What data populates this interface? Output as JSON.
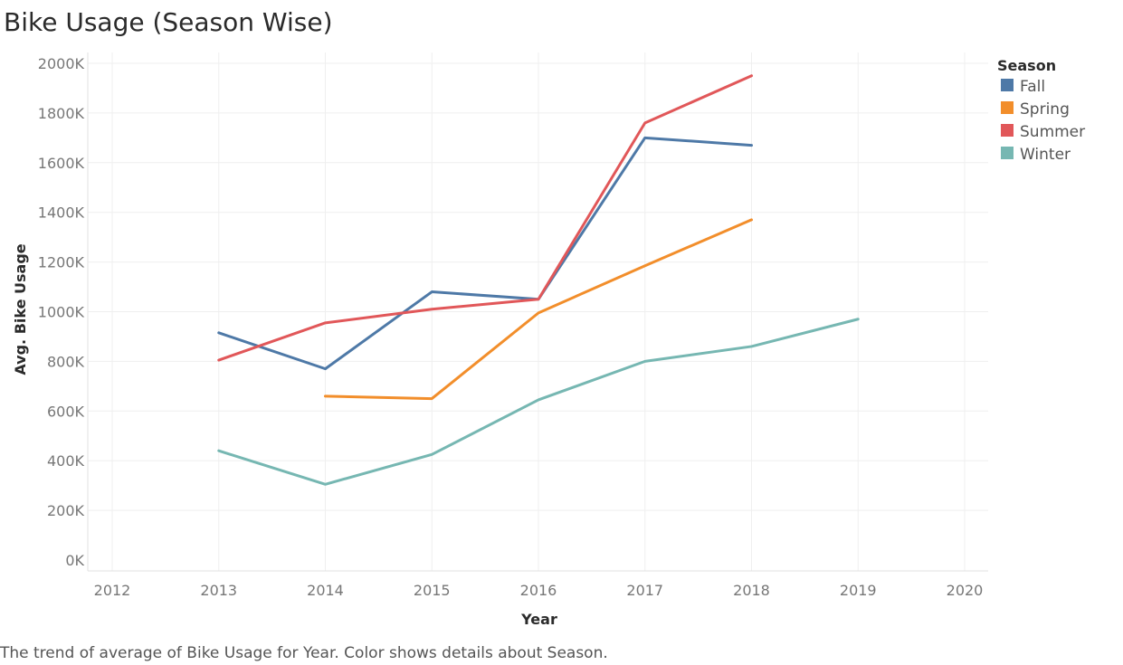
{
  "chart_data": {
    "type": "line",
    "title": "Bike Usage (Season Wise)",
    "caption": "The trend of average of Bike Usage for Year.  Color shows details about Season.",
    "xlabel": "Year",
    "ylabel": "Avg. Bike Usage",
    "x_ticks": [
      "2012",
      "2013",
      "2014",
      "2015",
      "2016",
      "2017",
      "2018",
      "2019",
      "2020"
    ],
    "xlim": [
      2012,
      2020
    ],
    "y_ticks": [
      "2000K",
      "1800K",
      "1600K",
      "1400K",
      "1200K",
      "1000K",
      "800K",
      "600K",
      "400K",
      "200K",
      "0K"
    ],
    "ylim": [
      0,
      2000
    ],
    "grid": true,
    "legend": {
      "title": "Season",
      "position": "top-right"
    },
    "series": [
      {
        "name": "Fall",
        "color": "#4e79a7",
        "x": [
          2013,
          2014,
          2015,
          2016,
          2017,
          2018
        ],
        "y": [
          915,
          770,
          1080,
          1050,
          1700,
          1670
        ]
      },
      {
        "name": "Spring",
        "color": "#f28e2b",
        "x": [
          2014,
          2015,
          2016,
          2017,
          2018
        ],
        "y": [
          660,
          650,
          995,
          1185,
          1370
        ]
      },
      {
        "name": "Summer",
        "color": "#e15759",
        "x": [
          2013,
          2014,
          2015,
          2016,
          2017,
          2018
        ],
        "y": [
          805,
          955,
          1010,
          1050,
          1760,
          1950
        ]
      },
      {
        "name": "Winter",
        "color": "#76b7b2",
        "x": [
          2013,
          2014,
          2015,
          2016,
          2017,
          2018,
          2019
        ],
        "y": [
          440,
          305,
          425,
          645,
          800,
          860,
          970
        ]
      }
    ]
  }
}
